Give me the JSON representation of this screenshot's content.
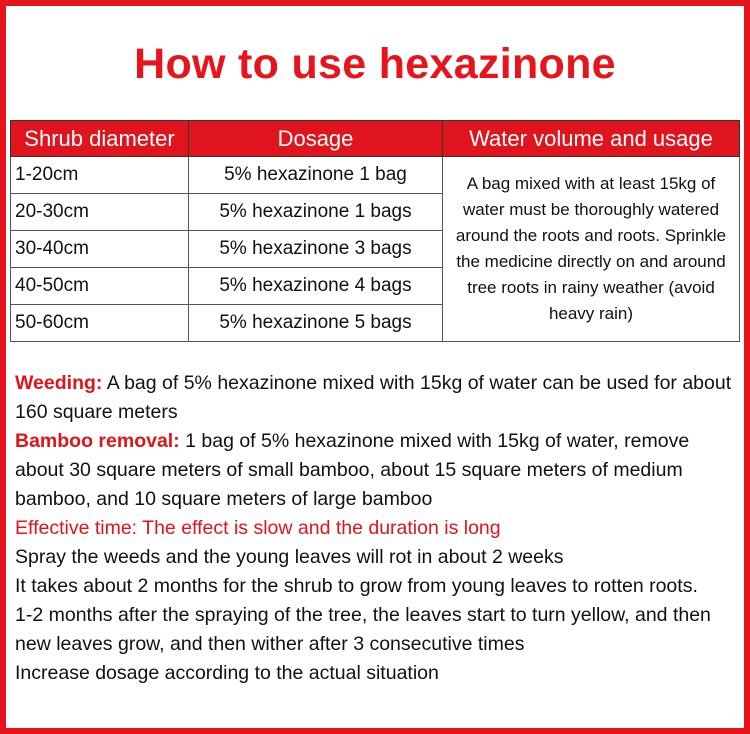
{
  "title": "How to use hexazinone",
  "table": {
    "headers": [
      "Shrub diameter",
      "Dosage",
      "Water volume and usage"
    ],
    "rows": [
      {
        "diameter": "1-20cm",
        "dosage": "5% hexazinone 1 bag"
      },
      {
        "diameter": "20-30cm",
        "dosage": "5% hexazinone 1 bags"
      },
      {
        "diameter": "30-40cm",
        "dosage": "5% hexazinone 3 bags"
      },
      {
        "diameter": "40-50cm",
        "dosage": "5% hexazinone 4 bags"
      },
      {
        "diameter": "50-60cm",
        "dosage": "5% hexazinone 5 bags"
      }
    ],
    "water_usage": "A bag mixed with at least 15kg of water must be thoroughly watered around the roots and roots. Sprinkle the medicine directly on and around tree roots in rainy weather (avoid heavy rain)"
  },
  "notes": {
    "weeding_label": "Weeding:",
    "weeding_text": " A bag of 5% hexazinone mixed with 15kg of water can be used for about 160 square meters",
    "bamboo_label": "Bamboo removal:",
    "bamboo_text": " 1 bag of 5% hexazinone mixed with 15kg of water, remove about 30 square meters of small bamboo, about 15 square meters of medium bamboo, and 10 square meters of large bamboo",
    "effective_time": "Effective time: The effect is slow and the duration is long",
    "lines": [
      "Spray the weeds and the young leaves will rot in about 2 weeks",
      "It takes about 2 months for the shrub to grow from young leaves to rotten roots.",
      "1-2 months after the spraying of the tree, the leaves start to turn yellow, and then new leaves grow, and then wither after 3 consecutive times",
      "Increase dosage according to the actual situation"
    ]
  },
  "colors": {
    "accent": "#e0141c"
  }
}
